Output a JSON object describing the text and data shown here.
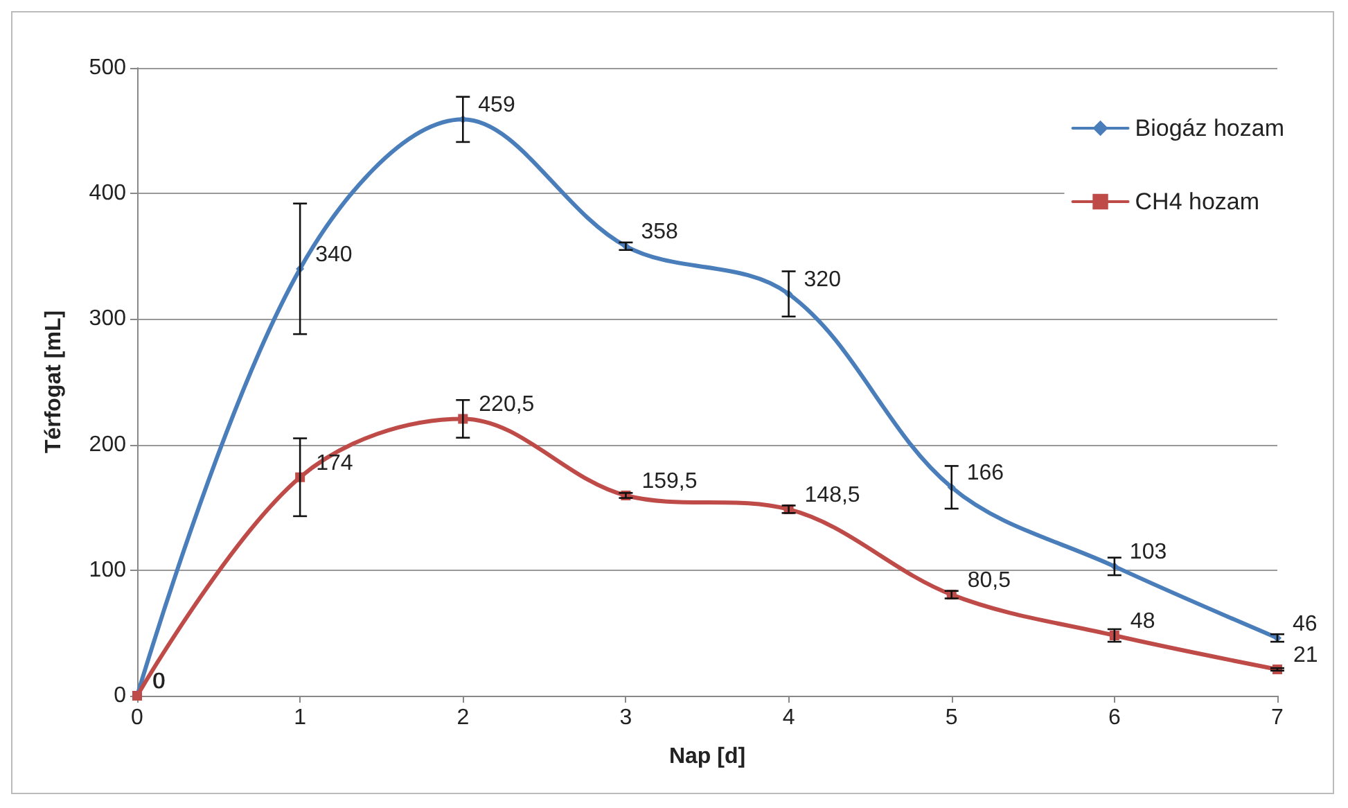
{
  "chart_data": {
    "type": "line",
    "xlabel": "Nap [d]",
    "ylabel": "Térfogat [mL]",
    "x": [
      0,
      1,
      2,
      3,
      4,
      5,
      6,
      7
    ],
    "series": [
      {
        "name": "Biogáz hozam",
        "color": "#4a7ebb",
        "marker": "diamond",
        "values": [
          0,
          340,
          459,
          358,
          320,
          166,
          103,
          46
        ],
        "errors": [
          null,
          52,
          18,
          3,
          18,
          17,
          7,
          3
        ],
        "value_labels": [
          "0",
          "340",
          "459",
          "358",
          "320",
          "166",
          "103",
          "46"
        ]
      },
      {
        "name": "CH4 hozam",
        "color": "#be4b48",
        "marker": "square",
        "values": [
          0,
          174,
          220.5,
          159.5,
          148.5,
          80.5,
          48,
          21
        ],
        "errors": [
          null,
          31,
          15,
          2,
          3,
          3,
          5,
          1
        ],
        "value_labels": [
          "0",
          "174",
          "220,5",
          "159,5",
          "148,5",
          "80,5",
          "48",
          "21"
        ]
      }
    ],
    "xlim": [
      0,
      7
    ],
    "xticks": [
      0,
      1,
      2,
      3,
      4,
      5,
      6,
      7
    ],
    "ylim": [
      0,
      500
    ],
    "yticks": [
      0,
      100,
      200,
      300,
      400,
      500
    ],
    "grid": "y",
    "legend": "top right",
    "line_style": "solid"
  }
}
